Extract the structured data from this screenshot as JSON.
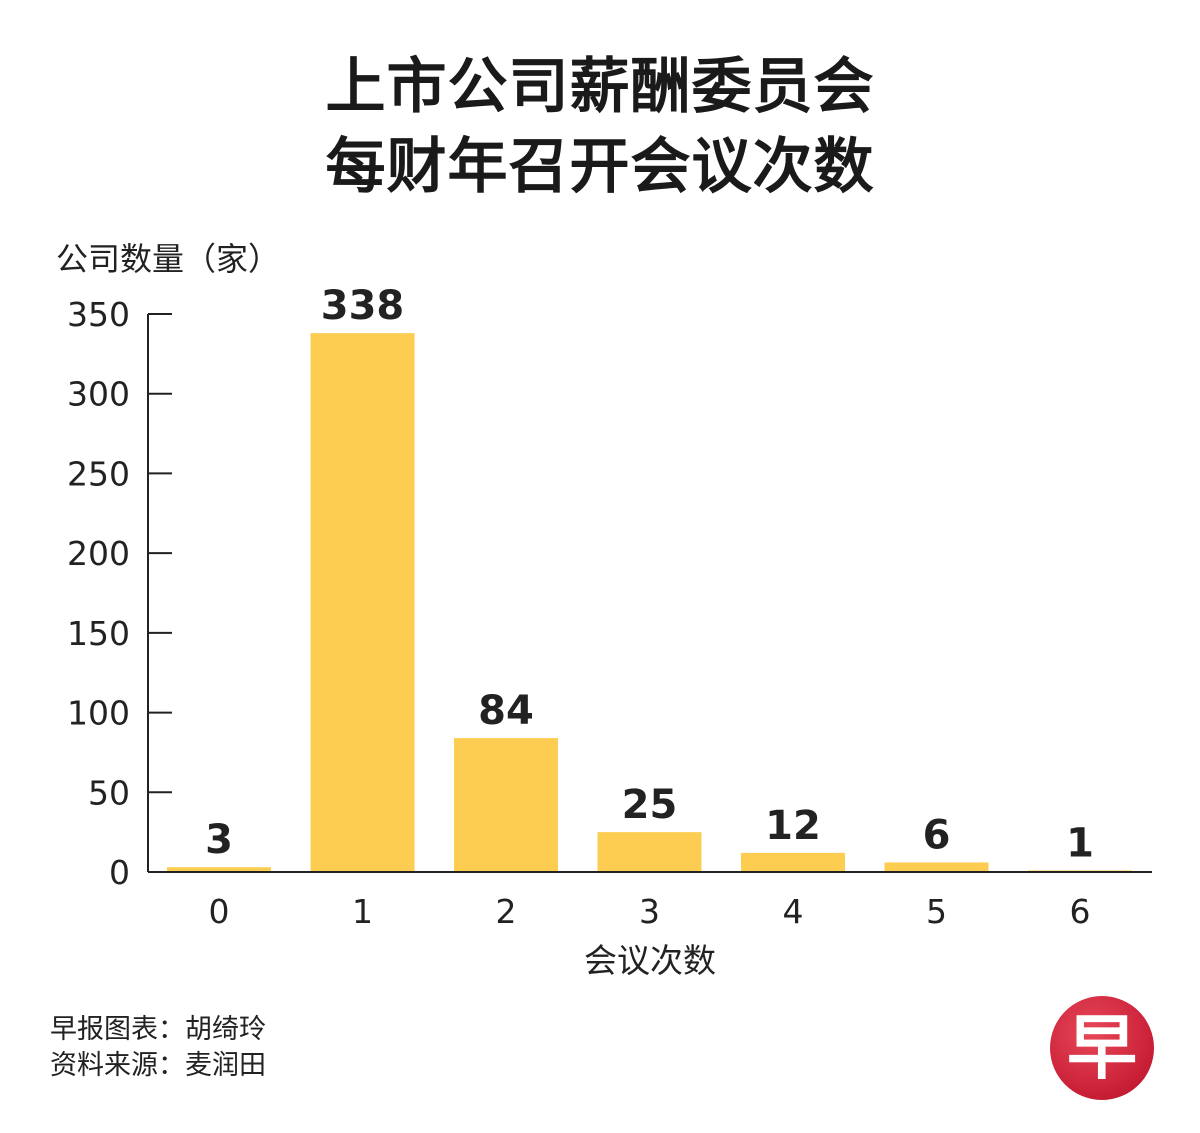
{
  "header": {
    "title_line1": "上市公司薪酬委员会",
    "title_line2": "每财年召开会议次数"
  },
  "chart_data": {
    "type": "bar",
    "title": "上市公司薪酬委员会每财年召开会议次数",
    "xlabel": "会议次数",
    "ylabel": "公司数量（家）",
    "categories": [
      "0",
      "1",
      "2",
      "3",
      "4",
      "5",
      "6"
    ],
    "values": [
      3,
      338,
      84,
      25,
      12,
      6,
      1
    ],
    "data_labels": [
      "3",
      "338",
      "84",
      "25",
      "12",
      "6",
      "1"
    ],
    "yticks": [
      0,
      50,
      100,
      150,
      200,
      250,
      300,
      350
    ],
    "ylim": [
      0,
      350
    ],
    "grid": false,
    "bar_color": "#fdcd52"
  },
  "footer": {
    "credit_line1": "早报图表：胡绮玲",
    "credit_line2": "资料来源：麦润田",
    "logo_char": "早"
  }
}
